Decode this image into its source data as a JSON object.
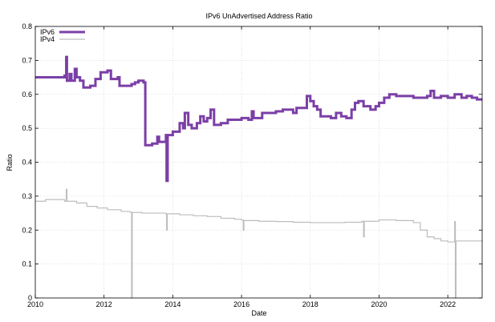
{
  "chart_data": {
    "type": "line",
    "title": "IPv6 UnAdvertised Address Ratio",
    "xlabel": "Date",
    "ylabel": "Ratio",
    "xlim": [
      2010,
      2023
    ],
    "ylim": [
      0,
      0.8
    ],
    "x_ticks": [
      2010,
      2012,
      2014,
      2016,
      2018,
      2020,
      2022
    ],
    "x_tick_labels": [
      "2010",
      "2012",
      "2014",
      "2016",
      "2018",
      "2020",
      "2022"
    ],
    "y_ticks": [
      0,
      0.1,
      0.2,
      0.3,
      0.4,
      0.5,
      0.6,
      0.7,
      0.8
    ],
    "y_tick_labels": [
      "0",
      "0.1",
      "0.2",
      "0.3",
      "0.4",
      "0.5",
      "0.6",
      "0.7",
      "0.8"
    ],
    "grid": true,
    "legend_position": "top-left",
    "series": [
      {
        "name": "IPv6",
        "color": "#7b3fa6",
        "points": [
          [
            2010.0,
            0.65
          ],
          [
            2010.8,
            0.65
          ],
          [
            2010.85,
            0.655
          ],
          [
            2010.9,
            0.71
          ],
          [
            2010.92,
            0.64
          ],
          [
            2011.0,
            0.66
          ],
          [
            2011.05,
            0.64
          ],
          [
            2011.15,
            0.675
          ],
          [
            2011.2,
            0.65
          ],
          [
            2011.3,
            0.64
          ],
          [
            2011.4,
            0.62
          ],
          [
            2011.6,
            0.625
          ],
          [
            2011.75,
            0.645
          ],
          [
            2011.9,
            0.665
          ],
          [
            2012.1,
            0.67
          ],
          [
            2012.2,
            0.645
          ],
          [
            2012.4,
            0.65
          ],
          [
            2012.45,
            0.625
          ],
          [
            2012.8,
            0.63
          ],
          [
            2012.9,
            0.635
          ],
          [
            2013.0,
            0.64
          ],
          [
            2013.15,
            0.635
          ],
          [
            2013.2,
            0.45
          ],
          [
            2013.4,
            0.455
          ],
          [
            2013.5,
            0.455
          ],
          [
            2013.55,
            0.475
          ],
          [
            2013.6,
            0.46
          ],
          [
            2013.8,
            0.48
          ],
          [
            2013.82,
            0.345
          ],
          [
            2013.85,
            0.48
          ],
          [
            2014.0,
            0.49
          ],
          [
            2014.2,
            0.515
          ],
          [
            2014.3,
            0.5
          ],
          [
            2014.35,
            0.545
          ],
          [
            2014.45,
            0.51
          ],
          [
            2014.55,
            0.5
          ],
          [
            2014.7,
            0.515
          ],
          [
            2014.8,
            0.535
          ],
          [
            2014.9,
            0.52
          ],
          [
            2015.0,
            0.53
          ],
          [
            2015.1,
            0.555
          ],
          [
            2015.2,
            0.51
          ],
          [
            2015.4,
            0.515
          ],
          [
            2015.6,
            0.525
          ],
          [
            2015.8,
            0.525
          ],
          [
            2016.0,
            0.53
          ],
          [
            2016.2,
            0.525
          ],
          [
            2016.3,
            0.55
          ],
          [
            2016.35,
            0.53
          ],
          [
            2016.6,
            0.545
          ],
          [
            2017.0,
            0.55
          ],
          [
            2017.2,
            0.555
          ],
          [
            2017.4,
            0.555
          ],
          [
            2017.5,
            0.545
          ],
          [
            2017.6,
            0.56
          ],
          [
            2017.8,
            0.56
          ],
          [
            2017.9,
            0.595
          ],
          [
            2018.0,
            0.58
          ],
          [
            2018.1,
            0.565
          ],
          [
            2018.2,
            0.555
          ],
          [
            2018.3,
            0.535
          ],
          [
            2018.45,
            0.535
          ],
          [
            2018.6,
            0.53
          ],
          [
            2018.75,
            0.545
          ],
          [
            2018.9,
            0.535
          ],
          [
            2019.05,
            0.53
          ],
          [
            2019.2,
            0.555
          ],
          [
            2019.3,
            0.575
          ],
          [
            2019.4,
            0.58
          ],
          [
            2019.55,
            0.565
          ],
          [
            2019.75,
            0.555
          ],
          [
            2019.9,
            0.565
          ],
          [
            2020.0,
            0.575
          ],
          [
            2020.15,
            0.59
          ],
          [
            2020.3,
            0.6
          ],
          [
            2020.5,
            0.595
          ],
          [
            2020.75,
            0.595
          ],
          [
            2021.0,
            0.59
          ],
          [
            2021.2,
            0.59
          ],
          [
            2021.4,
            0.595
          ],
          [
            2021.5,
            0.61
          ],
          [
            2021.6,
            0.59
          ],
          [
            2021.8,
            0.595
          ],
          [
            2022.0,
            0.59
          ],
          [
            2022.2,
            0.6
          ],
          [
            2022.4,
            0.59
          ],
          [
            2022.55,
            0.595
          ],
          [
            2022.7,
            0.59
          ],
          [
            2022.85,
            0.585
          ],
          [
            2023.0,
            0.585
          ]
        ]
      },
      {
        "name": "IPv4",
        "color": "#bdbdbd",
        "points": [
          [
            2010.0,
            0.285
          ],
          [
            2010.3,
            0.29
          ],
          [
            2010.6,
            0.29
          ],
          [
            2010.85,
            0.285
          ],
          [
            2010.9,
            0.32
          ],
          [
            2010.92,
            0.285
          ],
          [
            2011.2,
            0.28
          ],
          [
            2011.5,
            0.27
          ],
          [
            2011.8,
            0.265
          ],
          [
            2012.1,
            0.26
          ],
          [
            2012.5,
            0.255
          ],
          [
            2012.75,
            0.253
          ],
          [
            2012.8,
            0.0
          ],
          [
            2012.82,
            0.252
          ],
          [
            2013.1,
            0.25
          ],
          [
            2013.5,
            0.25
          ],
          [
            2013.8,
            0.248
          ],
          [
            2013.82,
            0.2
          ],
          [
            2013.84,
            0.248
          ],
          [
            2014.2,
            0.245
          ],
          [
            2014.6,
            0.242
          ],
          [
            2015.0,
            0.24
          ],
          [
            2015.4,
            0.235
          ],
          [
            2015.8,
            0.232
          ],
          [
            2016.0,
            0.23
          ],
          [
            2016.05,
            0.2
          ],
          [
            2016.07,
            0.228
          ],
          [
            2016.5,
            0.226
          ],
          [
            2017.0,
            0.225
          ],
          [
            2017.5,
            0.223
          ],
          [
            2018.0,
            0.222
          ],
          [
            2018.5,
            0.222
          ],
          [
            2019.0,
            0.223
          ],
          [
            2019.5,
            0.226
          ],
          [
            2019.55,
            0.18
          ],
          [
            2019.57,
            0.226
          ],
          [
            2020.0,
            0.23
          ],
          [
            2020.5,
            0.228
          ],
          [
            2021.0,
            0.222
          ],
          [
            2021.2,
            0.2
          ],
          [
            2021.4,
            0.18
          ],
          [
            2021.6,
            0.175
          ],
          [
            2021.8,
            0.168
          ],
          [
            2022.0,
            0.165
          ],
          [
            2022.15,
            0.165
          ],
          [
            2022.2,
            0.225
          ],
          [
            2022.22,
            0.0
          ],
          [
            2022.24,
            0.168
          ],
          [
            2022.6,
            0.168
          ],
          [
            2023.0,
            0.17
          ]
        ]
      }
    ]
  }
}
